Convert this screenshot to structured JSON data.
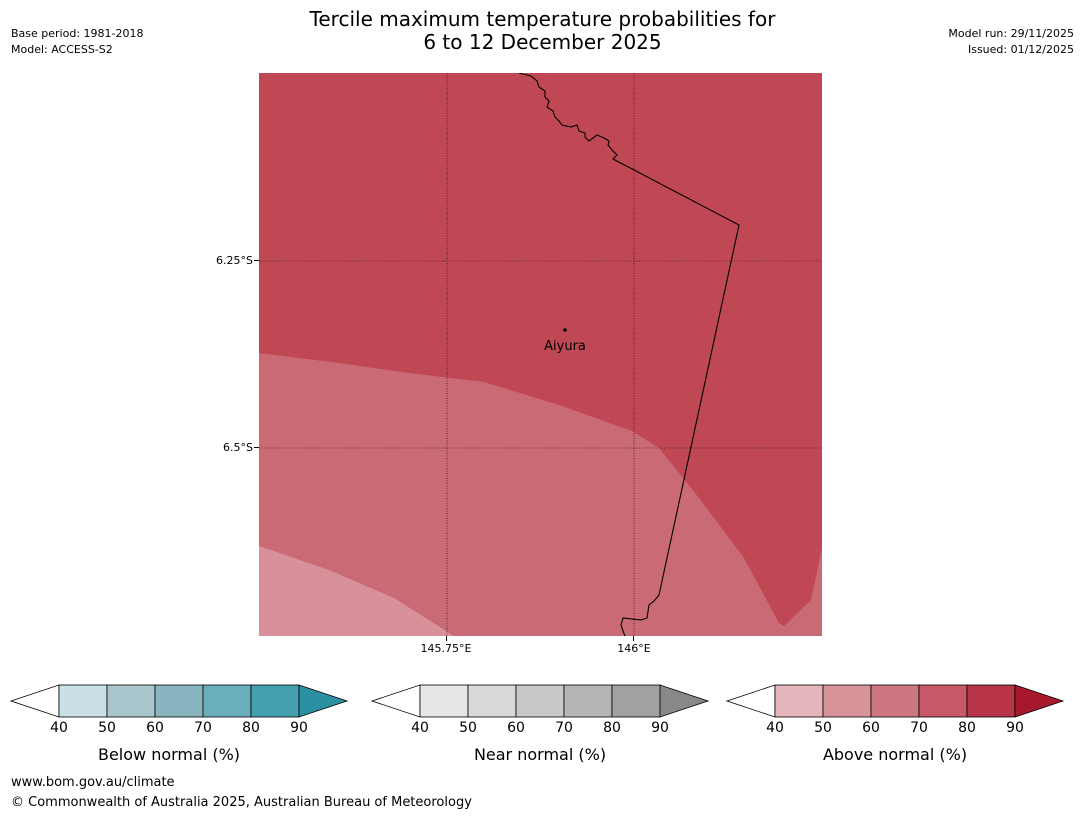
{
  "header": {
    "title_line1": "Tercile maximum temperature probabilities for",
    "title_line2": "6 to 12 December 2025",
    "base_period": "Base period: 1981-2018",
    "model": "Model: ACCESS-S2",
    "model_run": "Model run: 29/11/2025",
    "issued": "Issued: 01/12/2025"
  },
  "map": {
    "lat_labels": [
      "6.25°S",
      "6.5°S"
    ],
    "lon_labels": [
      "145.75°E",
      "146°E"
    ],
    "location": "Aiyura",
    "colors": {
      "above_80_90": "#c04855",
      "above_60_70": "#ca6a74",
      "above_50_60": "#d8919a"
    }
  },
  "colorbars": [
    {
      "title": "Below normal (%)",
      "ticks": [
        "40",
        "50",
        "60",
        "70",
        "80",
        "90"
      ],
      "colors": [
        "#c9e1e6",
        "#a9c6cc",
        "#89b5c1",
        "#6aaebb",
        "#45a0b0",
        "#2c90a3"
      ]
    },
    {
      "title": "Near normal (%)",
      "ticks": [
        "40",
        "50",
        "60",
        "70",
        "80",
        "90"
      ],
      "colors": [
        "#e6e6e6",
        "#d9d9d9",
        "#c9c9c9",
        "#b5b5b5",
        "#a1a1a1",
        "#888888"
      ]
    },
    {
      "title": "Above normal (%)",
      "ticks": [
        "40",
        "50",
        "60",
        "70",
        "80",
        "90"
      ],
      "colors": [
        "#e4b6bb",
        "#d8939b",
        "#cd7780",
        "#c65867",
        "#b83447",
        "#a8182d"
      ]
    }
  ],
  "footer": {
    "url": "www.bom.gov.au/climate",
    "copyright": "© Commonwealth of Australia 2025, Australian Bureau of Meteorology"
  }
}
